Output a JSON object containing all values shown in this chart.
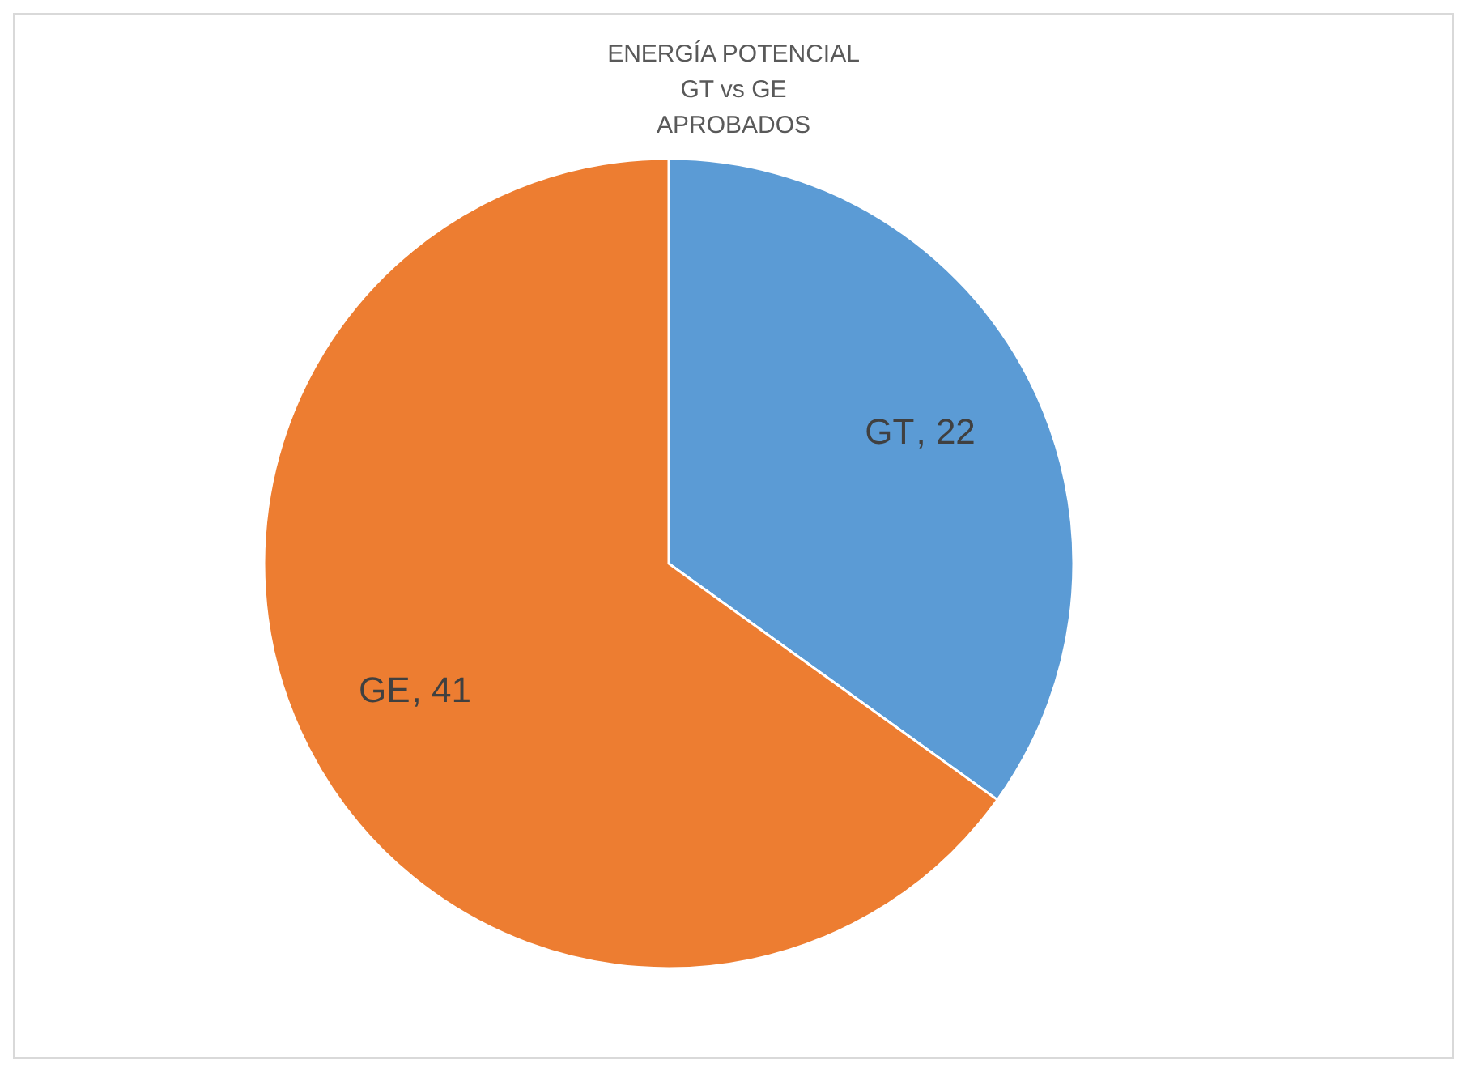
{
  "chart_data": {
    "type": "pie",
    "title": "ENERGÍA POTENCIAL\nGT vs GE\nAPROBADOS",
    "categories": [
      "GT",
      "GE"
    ],
    "values": [
      22,
      41
    ],
    "colors": [
      "#5b9bd5",
      "#ed7d31"
    ],
    "value_labels": [
      ", 22",
      ", 41"
    ],
    "legend": false
  }
}
